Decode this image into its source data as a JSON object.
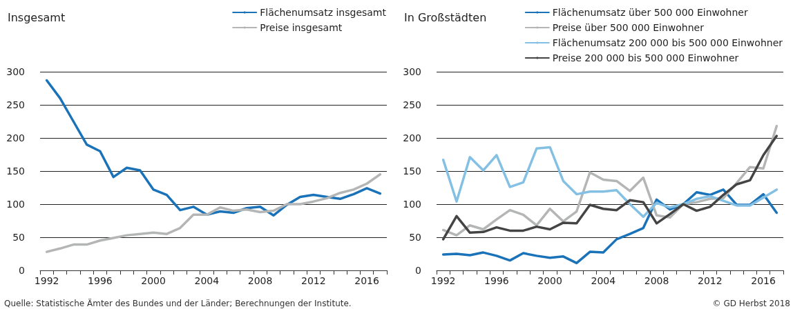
{
  "chart_data": [
    {
      "type": "line",
      "title": "Insgesamt",
      "categories": [
        "1992",
        null,
        null,
        null,
        "1996",
        null,
        null,
        null,
        "2000",
        null,
        null,
        null,
        "2004",
        null,
        null,
        null,
        "2008",
        null,
        null,
        null,
        "2012",
        null,
        null,
        null,
        "2016",
        null
      ],
      "series": [
        {
          "name": "Flächenumsatz insgesamt",
          "color": "#1a72b9",
          "values": [
            287,
            260,
            225,
            190,
            180,
            141,
            155,
            151,
            122,
            114,
            91,
            96,
            84,
            89,
            87,
            94,
            96,
            83,
            99,
            111,
            114,
            111,
            108,
            115,
            124,
            116
          ]
        },
        {
          "name": "Preise insgesamt",
          "color": "#b4b5b5",
          "values": [
            28,
            33,
            39,
            39,
            45,
            49,
            53,
            55,
            57,
            55,
            64,
            84,
            84,
            95,
            90,
            92,
            88,
            90,
            100,
            100,
            104,
            109,
            117,
            122,
            131,
            145
          ]
        }
      ],
      "ylim": [
        0,
        300
      ],
      "yticks": [
        0,
        50,
        100,
        150,
        200,
        250,
        300
      ],
      "grid": "y",
      "legend": "top right",
      "marker": "none",
      "line_style": "solid",
      "annotations": [
        "Quelle: Statistische Ämter des Bundes und der Länder; Berechnungen der Institute."
      ]
    },
    {
      "type": "line",
      "title": "In Großstädten",
      "categories": [
        "1992",
        null,
        null,
        null,
        "1996",
        null,
        null,
        null,
        "2000",
        null,
        null,
        null,
        "2004",
        null,
        null,
        null,
        "2008",
        null,
        null,
        null,
        "2012",
        null,
        null,
        null,
        "2016",
        null
      ],
      "series": [
        {
          "name": "Flächenumsatz über 500 000 Einwohner",
          "color": "#1a72b9",
          "values": [
            24,
            25,
            23,
            27,
            22,
            15,
            26,
            22,
            19,
            21,
            11,
            28,
            27,
            47,
            55,
            64,
            107,
            92,
            100,
            118,
            114,
            122,
            99,
            99,
            115,
            87
          ]
        },
        {
          "name": "Preise über 500 000 Einwohner",
          "color": "#b4b5b5",
          "values": [
            61,
            53,
            68,
            62,
            77,
            91,
            84,
            68,
            93,
            74,
            89,
            148,
            137,
            135,
            120,
            140,
            83,
            80,
            100,
            103,
            108,
            109,
            132,
            156,
            154,
            218
          ]
        },
        {
          "name": "Flächenumsatz 200 000 bis 500 000 Einwohner",
          "color": "#84c0e3",
          "values": [
            167,
            104,
            171,
            151,
            174,
            126,
            133,
            184,
            186,
            135,
            115,
            119,
            119,
            121,
            100,
            81,
            102,
            95,
            100,
            108,
            112,
            105,
            98,
            98,
            110,
            122
          ]
        },
        {
          "name": "Preise 200 000 bis 500 000 Einwohner",
          "color": "#444444",
          "values": [
            47,
            82,
            57,
            58,
            65,
            60,
            60,
            66,
            62,
            72,
            71,
            99,
            93,
            91,
            106,
            103,
            71,
            85,
            100,
            90,
            96,
            114,
            130,
            136,
            174,
            203
          ]
        }
      ],
      "ylim": [
        0,
        300
      ],
      "yticks": [
        0,
        50,
        100,
        150,
        200,
        250,
        300
      ],
      "grid": "y",
      "legend": "top right",
      "marker": "none",
      "line_style": "solid",
      "annotations": [
        "© GD Herbst 2018"
      ]
    }
  ]
}
